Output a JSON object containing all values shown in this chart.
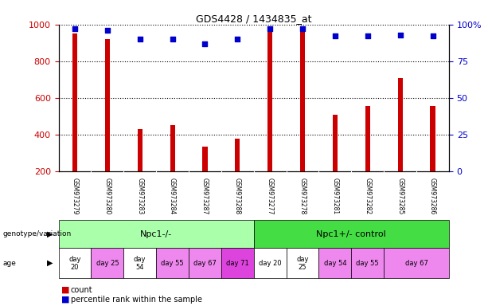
{
  "title": "GDS4428 / 1434835_at",
  "samples": [
    "GSM973279",
    "GSM973280",
    "GSM973283",
    "GSM973284",
    "GSM973287",
    "GSM973288",
    "GSM973277",
    "GSM973278",
    "GSM973281",
    "GSM973282",
    "GSM973285",
    "GSM973286"
  ],
  "counts": [
    950,
    920,
    430,
    450,
    335,
    380,
    980,
    960,
    510,
    555,
    710,
    555
  ],
  "percentile_ranks": [
    97,
    96,
    90,
    90,
    87,
    90,
    97,
    97,
    92,
    92,
    93,
    92
  ],
  "bar_color": "#cc0000",
  "dot_color": "#0000cc",
  "ylim_left": [
    200,
    1000
  ],
  "ylim_right": [
    0,
    100
  ],
  "yticks_left": [
    200,
    400,
    600,
    800,
    1000
  ],
  "yticks_right": [
    0,
    25,
    50,
    75,
    100
  ],
  "genotype_groups": [
    {
      "label": "Npc1-/-",
      "start": 0,
      "end": 6,
      "color": "#aaffaa"
    },
    {
      "label": "Npc1+/- control",
      "start": 6,
      "end": 12,
      "color": "#44dd44"
    }
  ],
  "age_groups": [
    {
      "label": "day\n20",
      "start": 0,
      "end": 1,
      "color": "white"
    },
    {
      "label": "day 25",
      "start": 1,
      "end": 2,
      "color": "#ee88ee"
    },
    {
      "label": "day\n54",
      "start": 2,
      "end": 3,
      "color": "white"
    },
    {
      "label": "day 55",
      "start": 3,
      "end": 4,
      "color": "#ee88ee"
    },
    {
      "label": "day 67",
      "start": 4,
      "end": 5,
      "color": "#ee88ee"
    },
    {
      "label": "day 71",
      "start": 5,
      "end": 6,
      "color": "#dd44dd"
    },
    {
      "label": "day 20",
      "start": 6,
      "end": 7,
      "color": "white"
    },
    {
      "label": "day\n25",
      "start": 7,
      "end": 8,
      "color": "white"
    },
    {
      "label": "day 54",
      "start": 8,
      "end": 9,
      "color": "#ee88ee"
    },
    {
      "label": "day 55",
      "start": 9,
      "end": 10,
      "color": "#ee88ee"
    },
    {
      "label": "day 67",
      "start": 10,
      "end": 12,
      "color": "#ee88ee"
    }
  ],
  "genotype_row_label": "genotype/variation",
  "age_row_label": "age",
  "legend_count_label": "count",
  "legend_percentile_label": "percentile rank within the sample",
  "bg_color": "white",
  "tick_label_color_left": "#cc0000",
  "tick_label_color_right": "#0000cc",
  "gsm_bg_color": "#d8d8d8"
}
